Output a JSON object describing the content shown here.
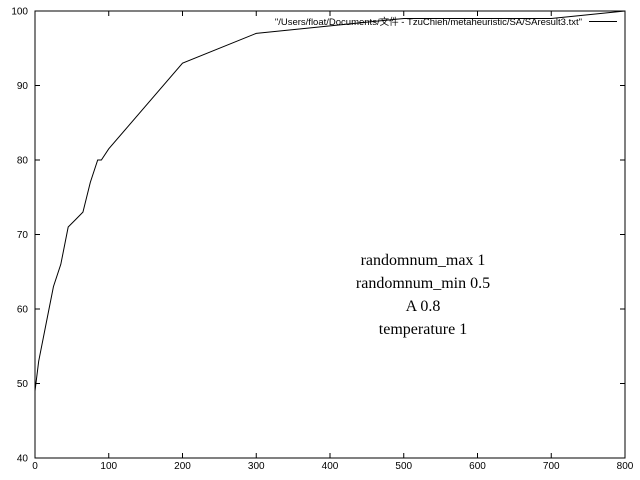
{
  "chart_data": {
    "type": "line",
    "title": "",
    "xlabel": "",
    "ylabel": "",
    "xlim": [
      0,
      800
    ],
    "ylim": [
      40,
      100
    ],
    "x_ticks": [
      "0",
      "100",
      "200",
      "300",
      "400",
      "500",
      "600",
      "700",
      "800"
    ],
    "y_ticks": [
      "40",
      "50",
      "60",
      "70",
      "80",
      "90",
      "100"
    ],
    "grid": false,
    "legend_position": "top-right",
    "series": [
      {
        "name": "\"/Users/float/Documents/文件 - TzuChieh/metaheuristic/SA/SAresult3.txt\"",
        "color": "#000000",
        "x": [
          0,
          5,
          15,
          25,
          35,
          45,
          55,
          65,
          75,
          85,
          90,
          100,
          200,
          300,
          400,
          500,
          600,
          700,
          800
        ],
        "y": [
          49,
          53,
          58,
          63,
          66,
          71,
          72,
          73,
          77,
          80,
          80,
          81.5,
          93,
          97,
          98,
          99,
          99,
          99,
          100
        ]
      }
    ],
    "annotation": [
      "randomnum_max 1",
      "randomnum_min 0.5",
      "A 0.8",
      "temperature 1"
    ]
  }
}
